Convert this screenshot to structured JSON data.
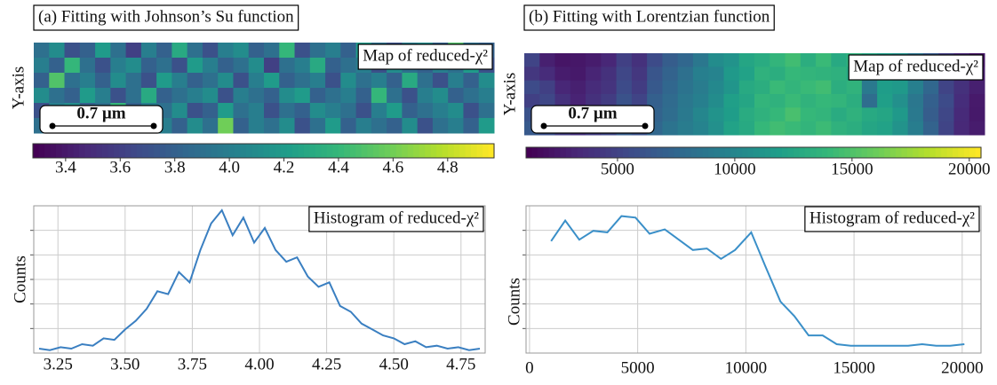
{
  "chart_data": [
    {
      "type": "heatmap",
      "panel_title": "(a) Fitting with Johnson’s Su function",
      "title": "Map of reduced-χ²",
      "ylabel": "Y-axis",
      "scalebar": "0.7 µm",
      "colormap": "viridis",
      "values": [
        [
          3.9,
          4.1,
          3.7,
          3.8,
          4.2,
          3.9,
          3.6,
          4.0,
          3.8,
          4.3,
          3.9,
          3.7,
          4.0,
          4.1,
          3.8,
          3.9,
          4.4,
          3.7,
          3.9,
          4.0,
          3.8,
          4.2,
          3.9,
          3.7,
          4.0,
          4.1,
          3.8,
          4.5,
          3.9,
          3.8
        ],
        [
          4.0,
          3.8,
          4.4,
          3.9,
          3.7,
          4.0,
          4.1,
          3.8,
          3.9,
          3.7,
          4.2,
          4.0,
          3.8,
          3.9,
          4.1,
          3.6,
          3.9,
          4.0,
          4.3,
          3.8,
          3.9,
          4.0,
          3.7,
          4.1,
          3.9,
          3.8,
          4.0,
          3.9,
          4.2,
          3.7
        ],
        [
          3.8,
          4.5,
          3.9,
          4.0,
          3.8,
          4.1,
          3.9,
          3.7,
          4.2,
          4.0,
          3.8,
          3.9,
          4.1,
          3.7,
          4.0,
          4.2,
          3.8,
          3.9,
          4.0,
          3.7,
          4.1,
          3.9,
          4.0,
          3.8,
          4.3,
          3.9,
          3.7,
          4.0,
          3.8,
          4.1
        ],
        [
          4.1,
          3.9,
          3.8,
          4.2,
          4.0,
          3.7,
          3.9,
          4.3,
          3.8,
          3.9,
          4.0,
          4.1,
          3.7,
          4.0,
          3.9,
          3.8,
          4.1,
          4.2,
          3.8,
          3.9,
          4.0,
          3.8,
          4.4,
          3.9,
          3.7,
          4.0,
          4.1,
          3.8,
          3.9,
          4.0
        ],
        [
          3.7,
          4.0,
          4.1,
          3.8,
          3.9,
          4.4,
          3.8,
          4.0,
          3.9,
          4.1,
          3.7,
          3.8,
          4.2,
          3.9,
          4.0,
          3.7,
          3.9,
          3.8,
          4.1,
          4.0,
          3.9,
          3.7,
          4.0,
          4.2,
          3.8,
          3.9,
          4.0,
          4.1,
          3.7,
          3.9
        ],
        [
          3.9,
          3.8,
          4.0,
          4.1,
          3.7,
          3.9,
          4.2,
          3.9,
          4.0,
          3.8,
          4.1,
          3.9,
          4.6,
          3.8,
          4.0,
          3.9,
          4.1,
          3.7,
          3.9,
          4.2,
          3.8,
          4.0,
          3.9,
          3.8,
          4.1,
          3.7,
          3.9,
          4.0,
          3.8,
          4.2
        ]
      ],
      "colorbar": {
        "lim": [
          3.28,
          4.97
        ],
        "ticks": [
          3.4,
          3.6,
          3.8,
          {
            "value": 4,
            "label": "4.0"
          },
          4.2,
          4.4,
          4.6,
          4.8
        ]
      }
    },
    {
      "type": "line",
      "title": "Histogram of reduced-χ²",
      "ylabel": "Counts",
      "color": "#3a7fc1",
      "grid": true,
      "x": [
        3.18,
        3.22,
        3.26,
        3.3,
        3.34,
        3.38,
        3.42,
        3.46,
        3.5,
        3.54,
        3.58,
        3.62,
        3.66,
        3.7,
        3.74,
        3.78,
        3.82,
        3.86,
        3.9,
        3.94,
        3.98,
        4.02,
        4.06,
        4.1,
        4.14,
        4.18,
        4.22,
        4.26,
        4.3,
        4.34,
        4.38,
        4.42,
        4.46,
        4.5,
        4.54,
        4.58,
        4.62,
        4.66,
        4.7,
        4.74,
        4.78,
        4.82
      ],
      "values": [
        3,
        2,
        4,
        3,
        6,
        5,
        10,
        9,
        16,
        22,
        30,
        42,
        40,
        55,
        48,
        70,
        88,
        97,
        80,
        92,
        75,
        85,
        70,
        62,
        65,
        52,
        45,
        48,
        32,
        28,
        20,
        16,
        12,
        10,
        6,
        8,
        4,
        5,
        3,
        4,
        2,
        3
      ],
      "xlim": [
        3.16,
        4.84
      ],
      "ylim": [
        0,
        100
      ],
      "xticks": [
        3.25,
        {
          "value": 3.5,
          "label": "3.50"
        },
        3.75,
        {
          "value": 4,
          "label": "4.00"
        },
        4.25,
        {
          "value": 4.5,
          "label": "4.50"
        },
        4.75
      ]
    },
    {
      "type": "heatmap",
      "panel_title": "(b) Fitting with Lorentzian function",
      "title": "Map of reduced-χ²",
      "ylabel": "Y-axis",
      "scalebar": "0.7 µm",
      "colormap": "viridis",
      "values": [
        [
          5000,
          2800,
          2200,
          2300,
          2600,
          3200,
          4800,
          3800,
          5500,
          6800,
          7500,
          8800,
          10500,
          11000,
          12500,
          13000,
          13800,
          14500,
          13200,
          14200,
          12800,
          13500,
          12600,
          11800,
          10800,
          8500,
          6500,
          4500,
          3200,
          2200
        ],
        [
          4200,
          3500,
          2600,
          2400,
          3100,
          3800,
          5200,
          4200,
          6200,
          7200,
          8200,
          9500,
          9800,
          11500,
          12200,
          13500,
          13200,
          14000,
          13800,
          13600,
          13400,
          12800,
          12200,
          12400,
          11200,
          9200,
          7200,
          5200,
          3500,
          2600
        ],
        [
          5500,
          4800,
          3200,
          2800,
          3500,
          4000,
          5500,
          4500,
          6500,
          7500,
          8500,
          9200,
          10200,
          11200,
          12800,
          13200,
          14200,
          13800,
          14200,
          14500,
          13200,
          13600,
          9000,
          11800,
          11500,
          9500,
          7500,
          5000,
          3800,
          2800
        ],
        [
          4800,
          5200,
          3800,
          3000,
          3800,
          4500,
          6000,
          5000,
          7000,
          7800,
          8800,
          9500,
          10500,
          12000,
          12500,
          13800,
          13500,
          14200,
          13600,
          14000,
          13800,
          13200,
          8000,
          12000,
          10800,
          8800,
          7000,
          5500,
          3600,
          2500
        ],
        [
          6000,
          5500,
          4200,
          3500,
          4000,
          5000,
          6500,
          5500,
          7200,
          8000,
          9000,
          10000,
          11000,
          11800,
          13000,
          13500,
          14000,
          14800,
          14000,
          13800,
          13000,
          13500,
          12800,
          12500,
          11500,
          9000,
          6800,
          5200,
          3400,
          2400
        ],
        [
          6500,
          5800,
          4500,
          3800,
          4500,
          5200,
          6800,
          6000,
          7500,
          8500,
          9200,
          9800,
          10800,
          12200,
          12800,
          14000,
          14500,
          14200,
          13800,
          14300,
          13500,
          13200,
          12500,
          12200,
          11000,
          9300,
          7200,
          5000,
          3300,
          2600
        ]
      ],
      "colorbar": {
        "lim": [
          1100,
          20500
        ],
        "ticks": [
          5000,
          10000,
          15000,
          20000
        ]
      }
    },
    {
      "type": "line",
      "title": "Histogram of reduced-χ²",
      "ylabel": "Counts",
      "color": "#3a8fc8",
      "grid": true,
      "x": [
        1000,
        1650,
        2300,
        2950,
        3600,
        4250,
        4900,
        5550,
        6250,
        6900,
        7550,
        8200,
        8850,
        9500,
        10250,
        10900,
        11600,
        12250,
        12900,
        13550,
        14200,
        14850,
        15500,
        16200,
        16850,
        17500,
        18150,
        18800,
        19450,
        20100
      ],
      "values": [
        76,
        90,
        77,
        83,
        82,
        93,
        92,
        81,
        84,
        77,
        70,
        71,
        64,
        70,
        82,
        59,
        35,
        25,
        12,
        12,
        6,
        5,
        5,
        5,
        5,
        5,
        6,
        5,
        5,
        6
      ],
      "xlim": [
        -160,
        20870
      ],
      "ylim": [
        0,
        100
      ],
      "xticks": [
        0,
        5000,
        10000,
        15000,
        20000
      ]
    }
  ]
}
